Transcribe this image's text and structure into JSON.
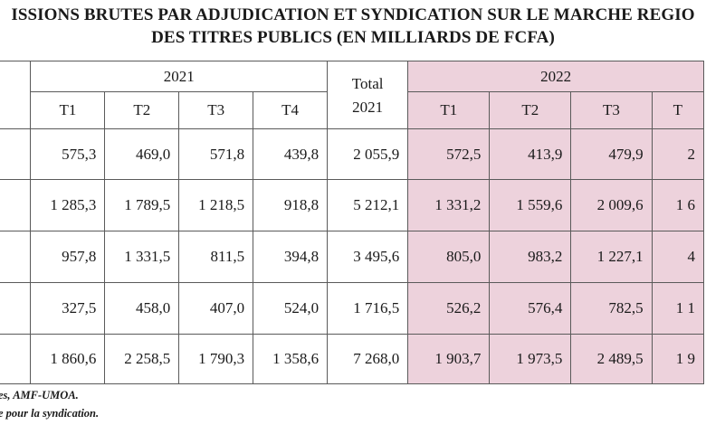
{
  "title": {
    "line1": "ISSIONS BRUTES PAR ADJUDICATION ET SYNDICATION SUR LE MARCHE REGIO",
    "line2": "DES TITRES PUBLICS (EN MILLIARDS DE FCFA)"
  },
  "table": {
    "year_2021": "2021",
    "total_label_line1": "Total",
    "total_label_line2": "2021",
    "year_2022": "2022",
    "quarters_2021": [
      "T1",
      "T2",
      "T3",
      "T4"
    ],
    "quarters_2022": [
      "T1",
      "T2",
      "T3",
      "T"
    ],
    "rows": [
      {
        "c2021": [
          "575,3",
          "469,0",
          "571,8",
          "439,8"
        ],
        "total": "2 055,9",
        "c2022": [
          "572,5",
          "413,9",
          "479,9",
          "2"
        ]
      },
      {
        "c2021": [
          "1 285,3",
          "1 789,5",
          "1 218,5",
          "918,8"
        ],
        "total": "5 212,1",
        "c2022": [
          "1 331,2",
          "1 559,6",
          "2 009,6",
          "1 6"
        ]
      },
      {
        "c2021": [
          "957,8",
          "1 331,5",
          "811,5",
          "394,8"
        ],
        "total": "3 495,6",
        "c2022": [
          "805,0",
          "983,2",
          "1 227,1",
          "4"
        ]
      },
      {
        "c2021": [
          "327,5",
          "458,0",
          "407,0",
          "524,0"
        ],
        "total": "1 716,5",
        "c2022": [
          "526,2",
          "576,4",
          "782,5",
          "1 1"
        ]
      },
      {
        "c2021": [
          "1 860,6",
          "2 258,5",
          "1 790,3",
          "1 358,6"
        ],
        "total": "7 268,0",
        "c2022": [
          "1 903,7",
          "1 973,5",
          "2 489,5",
          "1 9"
        ]
      }
    ]
  },
  "notes": {
    "source": "es, AMF-UMOA.",
    "note2": "e pour la syndication."
  }
}
